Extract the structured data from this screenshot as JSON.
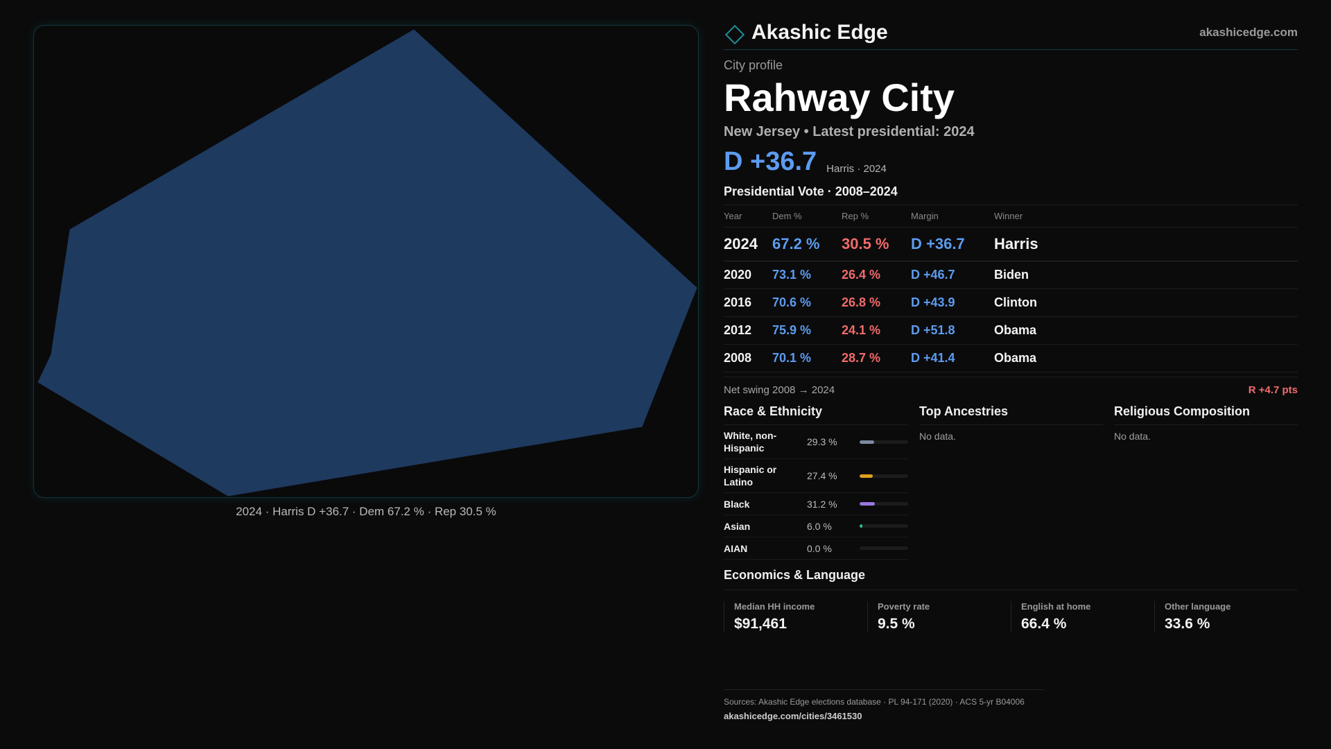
{
  "map": {
    "caption": "2024 · Harris D +36.7 · Dem 67.2 % · Rep 30.5 %",
    "fill_color": "#1f3a5f"
  },
  "header": {
    "brand": "Akashic Edge",
    "site": "akashicedge.com",
    "logo_icon": "diamond-outline"
  },
  "profile": {
    "kicker": "City profile",
    "city": "Rahway City",
    "subtitle": "New Jersey • Latest presidential: 2024",
    "hero_margin": "D +36.7",
    "hero_sub": "Harris · 2024"
  },
  "votes": {
    "title": "Presidential Vote · 2008–2024",
    "headers": [
      "Year",
      "Dem %",
      "Rep %",
      "Margin",
      "Winner"
    ],
    "rows": [
      {
        "year": "2024",
        "dem": "67.2 %",
        "rep": "30.5 %",
        "margin": "D +36.7",
        "winner": "Harris"
      },
      {
        "year": "2020",
        "dem": "73.1 %",
        "rep": "26.4 %",
        "margin": "D +46.7",
        "winner": "Biden"
      },
      {
        "year": "2016",
        "dem": "70.6 %",
        "rep": "26.8 %",
        "margin": "D +43.9",
        "winner": "Clinton"
      },
      {
        "year": "2012",
        "dem": "75.9 %",
        "rep": "24.1 %",
        "margin": "D +51.8",
        "winner": "Obama"
      },
      {
        "year": "2008",
        "dem": "70.1 %",
        "rep": "28.7 %",
        "margin": "D +41.4",
        "winner": "Obama"
      }
    ],
    "swing_label": "Net swing 2008 → 2024",
    "swing_value": "R +4.7 pts"
  },
  "race": {
    "title": "Race & Ethnicity",
    "rows": [
      {
        "label": "White, non-Hispanic",
        "value": "29.3 %",
        "pct": 29.3,
        "color": "#7d8aa0"
      },
      {
        "label": "Hispanic or Latino",
        "value": "27.4 %",
        "pct": 27.4,
        "color": "#e0a020"
      },
      {
        "label": "Black",
        "value": "31.2 %",
        "pct": 31.2,
        "color": "#9a78e0"
      },
      {
        "label": "Asian",
        "value": "6.0 %",
        "pct": 6.0,
        "color": "#2fc08a"
      },
      {
        "label": "AIAN",
        "value": "0.0 %",
        "pct": 0.0,
        "color": "#888888"
      }
    ]
  },
  "ancestries": {
    "title": "Top Ancestries",
    "empty": "No data."
  },
  "religion": {
    "title": "Religious Composition",
    "empty": "No data."
  },
  "economics": {
    "title": "Economics & Language",
    "cards": [
      {
        "label": "Median HH income",
        "value": "$91,461"
      },
      {
        "label": "Poverty rate",
        "value": "9.5 %"
      },
      {
        "label": "English at home",
        "value": "66.4 %"
      },
      {
        "label": "Other language",
        "value": "33.6 %"
      }
    ]
  },
  "sources": {
    "line": "Sources: Akashic Edge elections database · PL 94-171 (2020) · ACS 5-yr B04006",
    "url": "akashicedge.com/cities/3461530"
  }
}
